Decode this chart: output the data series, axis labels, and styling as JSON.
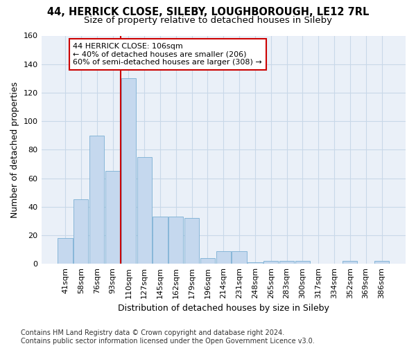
{
  "title1": "44, HERRICK CLOSE, SILEBY, LOUGHBOROUGH, LE12 7RL",
  "title2": "Size of property relative to detached houses in Sileby",
  "xlabel": "Distribution of detached houses by size in Sileby",
  "ylabel": "Number of detached properties",
  "bar_labels": [
    "41sqm",
    "58sqm",
    "76sqm",
    "93sqm",
    "110sqm",
    "127sqm",
    "145sqm",
    "162sqm",
    "179sqm",
    "196sqm",
    "214sqm",
    "231sqm",
    "248sqm",
    "265sqm",
    "283sqm",
    "300sqm",
    "317sqm",
    "334sqm",
    "352sqm",
    "369sqm",
    "386sqm"
  ],
  "bar_values": [
    18,
    45,
    90,
    65,
    130,
    75,
    33,
    33,
    32,
    4,
    9,
    9,
    1,
    2,
    2,
    2,
    0,
    0,
    2,
    0,
    2
  ],
  "bar_color": "#c5d8ee",
  "bar_edge_color": "#7aafd4",
  "vline_index": 4,
  "vline_color": "#cc0000",
  "annotation_text": "44 HERRICK CLOSE: 106sqm\n← 40% of detached houses are smaller (206)\n60% of semi-detached houses are larger (308) →",
  "annotation_box_color": "#ffffff",
  "annotation_box_edge": "#cc0000",
  "ylim": [
    0,
    160
  ],
  "yticks": [
    0,
    20,
    40,
    60,
    80,
    100,
    120,
    140,
    160
  ],
  "grid_color": "#c8d8e8",
  "background_color": "#eaf0f8",
  "footer": "Contains HM Land Registry data © Crown copyright and database right 2024.\nContains public sector information licensed under the Open Government Licence v3.0.",
  "title1_fontsize": 10.5,
  "title2_fontsize": 9.5,
  "xlabel_fontsize": 9,
  "ylabel_fontsize": 9,
  "tick_fontsize": 8,
  "annotation_fontsize": 8,
  "footer_fontsize": 7
}
